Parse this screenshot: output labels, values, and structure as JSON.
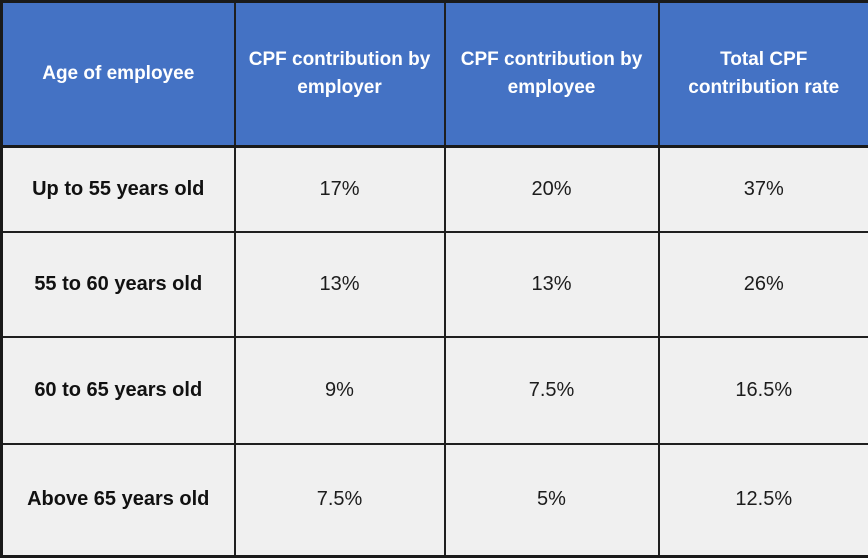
{
  "colors": {
    "header_bg": "#4472C4",
    "header_text": "#FFFFFF",
    "body_bg": "#F0F0F0",
    "border": "#1A1A1A",
    "body_text": "#1C1C1C"
  },
  "chart_data": {
    "type": "table",
    "title": "",
    "columns": [
      "Age of employee",
      "CPF contribution by employer",
      "CPF contribution by employee",
      "Total CPF contribution rate"
    ],
    "rows": [
      [
        "Up to 55 years old",
        "17%",
        "20%",
        "37%"
      ],
      [
        "55 to 60 years old",
        "13%",
        "13%",
        "26%"
      ],
      [
        "60 to 65 years old",
        "9%",
        "7.5%",
        "16.5%"
      ],
      [
        "Above 65 years old",
        "7.5%",
        "5%",
        "12.5%"
      ]
    ]
  }
}
